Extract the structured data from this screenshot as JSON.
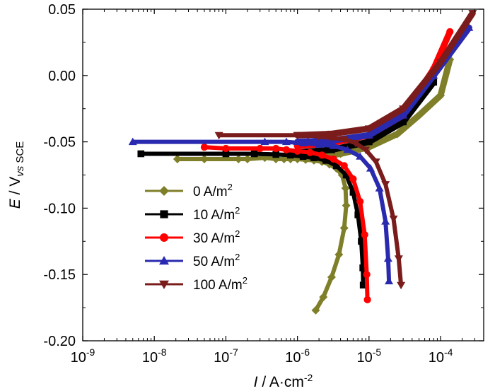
{
  "chart_data": {
    "type": "scatter",
    "xscale": "log",
    "xlim": [
      1e-09,
      0.0004
    ],
    "ylim": [
      -0.2,
      0.05
    ],
    "xlabel": {
      "var": "I",
      "rest": " / A·cm",
      "sup": "-2"
    },
    "ylabel": {
      "var": "E",
      "rest": " / V",
      "sub": "vs",
      "sub2": " SCE"
    },
    "xticks": [
      {
        "base": "10",
        "exp": "-9",
        "value": 1e-09
      },
      {
        "base": "10",
        "exp": "-8",
        "value": 1e-08
      },
      {
        "base": "10",
        "exp": "-7",
        "value": 1e-07
      },
      {
        "base": "10",
        "exp": "-6",
        "value": 1e-06
      },
      {
        "base": "10",
        "exp": "-5",
        "value": 1e-05
      },
      {
        "base": "10",
        "exp": "-4",
        "value": 0.0001
      }
    ],
    "yticks": [
      {
        "label": "0.05",
        "value": 0.05
      },
      {
        "label": "0.00",
        "value": 0.0
      },
      {
        "label": "-0.05",
        "value": -0.05
      },
      {
        "label": "-0.10",
        "value": -0.1
      },
      {
        "label": "-0.15",
        "value": -0.15
      },
      {
        "label": "-0.20",
        "value": -0.2
      }
    ],
    "legend_position": "lower-left",
    "series": [
      {
        "name": "0 A/m",
        "sup": "2",
        "color": "#7f7f2a",
        "marker": "diamond",
        "x": [
          2.1e-08,
          5e-08,
          1.5e-07,
          2e-07,
          3.5e-07,
          5e-07,
          6.5e-07,
          8e-07,
          1e-06,
          1.3e-06,
          1.7e-06,
          2.2e-06,
          2.8e-06,
          3.5e-06,
          4.2e-06,
          4.7e-06,
          4.8e-06,
          4.5e-06,
          3.8e-06,
          3e-06,
          2.3e-06,
          1.8e-06
        ],
        "y": [
          -0.063,
          -0.063,
          -0.063,
          -0.063,
          -0.062,
          -0.063,
          -0.063,
          -0.063,
          -0.063,
          -0.0635,
          -0.064,
          -0.065,
          -0.067,
          -0.07,
          -0.075,
          -0.085,
          -0.098,
          -0.115,
          -0.135,
          -0.152,
          -0.167,
          -0.177
        ],
        "x2": [
          1e-06,
          2e-06,
          4e-06,
          1e-05,
          2.5e-05,
          5e-05,
          0.0001,
          0.000135
        ],
        "y2": [
          -0.062,
          -0.061,
          -0.059,
          -0.054,
          -0.044,
          -0.03,
          -0.015,
          0.012
        ]
      },
      {
        "name": "10 A/m",
        "sup": "2",
        "color": "#000000",
        "marker": "square",
        "x": [
          6.5e-09,
          1e-07,
          2.5e-07,
          5e-07,
          8e-07,
          1.2e-06,
          1.7e-06,
          2.5e-06,
          3.5e-06,
          4.8e-06,
          6e-06,
          7e-06,
          7.8e-06,
          8.2e-06,
          8.3e-06
        ],
        "y": [
          -0.059,
          -0.059,
          -0.059,
          -0.0595,
          -0.06,
          -0.061,
          -0.062,
          -0.064,
          -0.068,
          -0.075,
          -0.088,
          -0.105,
          -0.125,
          -0.145,
          -0.158
        ],
        "x2": [
          1e-06,
          3e-06,
          1e-05,
          3e-05,
          8e-05
        ],
        "y2": [
          -0.058,
          -0.056,
          -0.05,
          -0.035,
          -0.005
        ]
      },
      {
        "name": "30 A/m",
        "sup": "2",
        "color": "#ff0000",
        "marker": "circle",
        "x": [
          5e-08,
          1e-07,
          3e-07,
          5e-07,
          7e-07,
          1e-06,
          1.5e-06,
          2.2e-06,
          3.2e-06,
          4.5e-06,
          6e-06,
          7.5e-06,
          8.7e-06,
          9.3e-06,
          9.5e-06
        ],
        "y": [
          -0.054,
          -0.055,
          -0.055,
          -0.055,
          -0.056,
          -0.057,
          -0.058,
          -0.06,
          -0.063,
          -0.068,
          -0.078,
          -0.095,
          -0.12,
          -0.15,
          -0.169
        ],
        "x2": [
          1e-06,
          3e-06,
          1e-05,
          3e-05,
          8e-05,
          0.000135
        ],
        "y2": [
          -0.053,
          -0.051,
          -0.045,
          -0.03,
          0.005,
          0.033
        ]
      },
      {
        "name": "50 A/m",
        "sup": "2",
        "color": "#2a2ab0",
        "marker": "triangle-up",
        "x": [
          5e-09,
          3.5e-07,
          7e-07,
          1.2e-06,
          2e-06,
          3.2e-06,
          5e-06,
          7.5e-06,
          1.05e-05,
          1.4e-05,
          1.7e-05,
          1.85e-05,
          1.9e-05
        ],
        "y": [
          -0.05,
          -0.05,
          -0.05,
          -0.051,
          -0.052,
          -0.053,
          -0.056,
          -0.061,
          -0.07,
          -0.085,
          -0.11,
          -0.138,
          -0.155
        ],
        "x2": [
          1e-06,
          3e-06,
          1e-05,
          3e-05,
          8e-05,
          0.00025
        ],
        "y2": [
          -0.05,
          -0.049,
          -0.045,
          -0.03,
          0.0,
          0.036
        ]
      },
      {
        "name": "100 A/m",
        "sup": "2",
        "color": "#7b1c1c",
        "marker": "triangle-down",
        "x": [
          8e-08,
          1e-06,
          1.4e-06,
          2e-06,
          3e-06,
          4.5e-06,
          6.5e-06,
          9e-06,
          1.25e-05,
          1.7e-05,
          2.2e-05,
          2.6e-05,
          2.8e-05
        ],
        "y": [
          -0.045,
          -0.045,
          -0.045,
          -0.046,
          -0.047,
          -0.048,
          -0.051,
          -0.056,
          -0.065,
          -0.082,
          -0.108,
          -0.138,
          -0.158
        ],
        "x2": [
          1e-06,
          3e-06,
          1e-05,
          3e-05,
          0.0001,
          0.00028
        ],
        "y2": [
          -0.045,
          -0.044,
          -0.04,
          -0.025,
          0.01,
          0.047
        ]
      }
    ]
  }
}
